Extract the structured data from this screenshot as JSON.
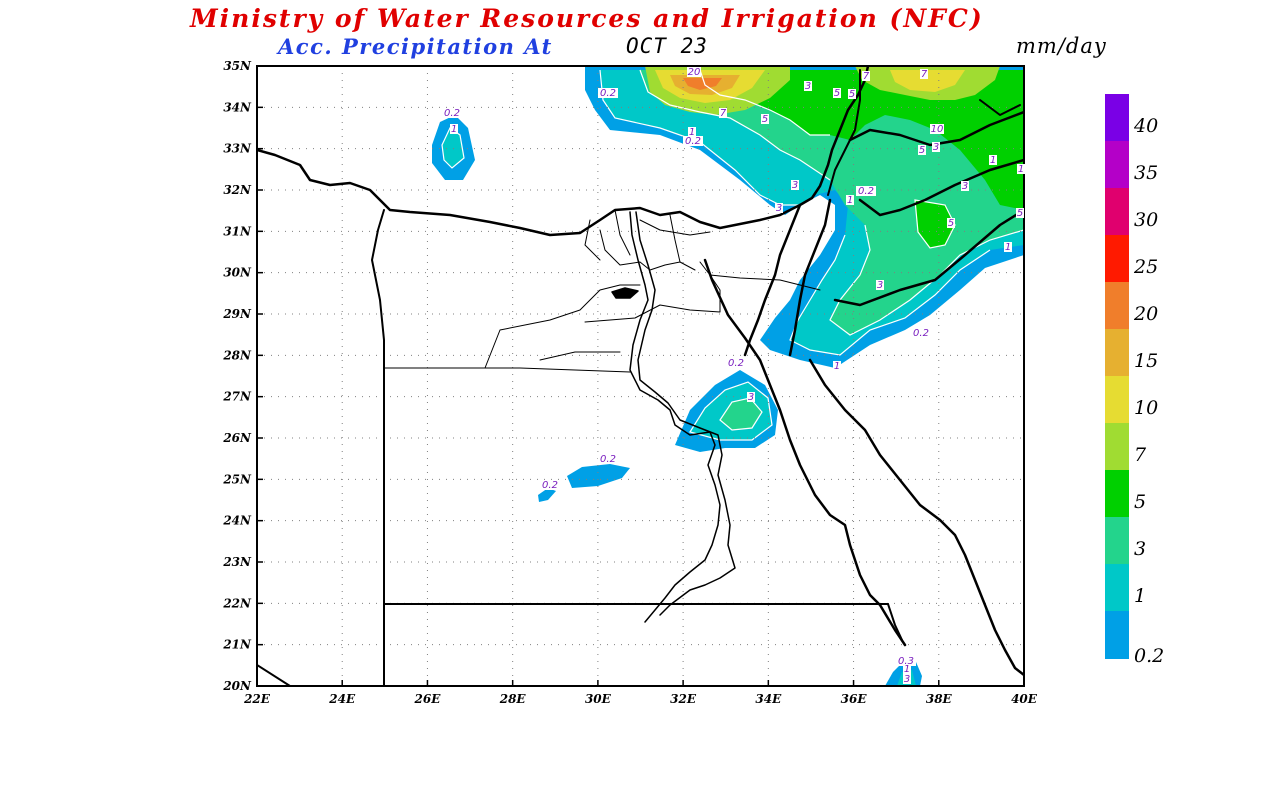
{
  "header": {
    "title": "Ministry of Water Resources and Irrigation (NFC)",
    "subtitle_product": "Acc. Precipitation  At",
    "subtitle_date": "OCT 23",
    "units": "mm/day"
  },
  "map": {
    "lon_range": [
      22,
      40
    ],
    "lat_range": [
      20,
      35
    ],
    "x_ticks": [
      "22E",
      "24E",
      "26E",
      "28E",
      "30E",
      "32E",
      "34E",
      "36E",
      "38E",
      "40E"
    ],
    "y_ticks": [
      "35N",
      "34N",
      "33N",
      "32N",
      "31N",
      "30N",
      "29N",
      "28N",
      "27N",
      "26N",
      "25N",
      "24N",
      "23N",
      "22N",
      "21N",
      "20N"
    ],
    "grid": "dotted",
    "contour_labels": [
      "0.2",
      "1",
      "0.2",
      "3",
      "0.2",
      "0.2",
      "20",
      "3",
      "7",
      "5",
      "0.2",
      "1",
      "5",
      "3",
      "5",
      "7",
      "7",
      "10",
      "5",
      "3",
      "3",
      "1",
      "0.2",
      "5",
      "3",
      "1",
      "5",
      "1",
      "3",
      "0.2",
      "1",
      "0.2",
      "1",
      "0.2",
      "0.3",
      "1",
      "3"
    ]
  },
  "legend": {
    "labels": [
      "40",
      "35",
      "30",
      "25",
      "20",
      "15",
      "10",
      "7",
      "5",
      "3",
      "1",
      "0.2"
    ],
    "colors": [
      "#7a00e6",
      "#b400c8",
      "#e0006e",
      "#ff1a00",
      "#f07e2b",
      "#e6b030",
      "#e6dc32",
      "#a0dc32",
      "#00d000",
      "#23d48c",
      "#00c8c8",
      "#00a0e6"
    ]
  }
}
